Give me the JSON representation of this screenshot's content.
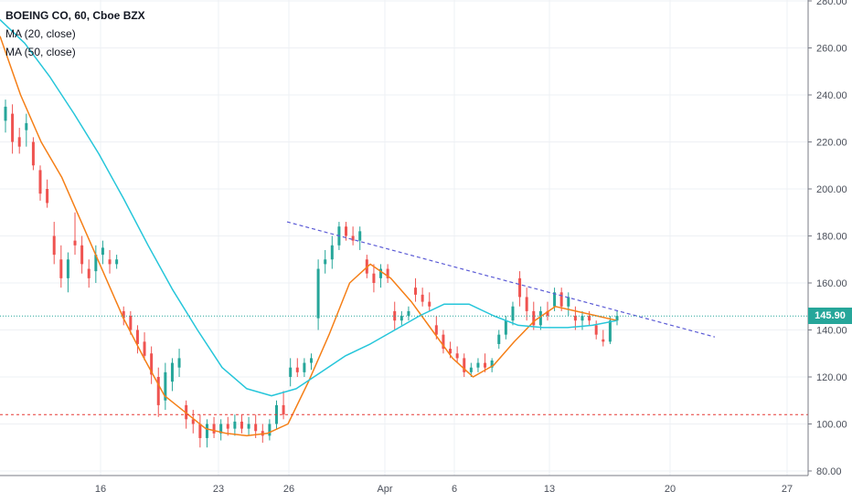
{
  "legend": {
    "symbol": "BOEING CO, 60, Cboe BZX",
    "ma20": "MA (20, close)",
    "ma50": "MA (50, close)"
  },
  "last_price_label": "145.90",
  "colors": {
    "up": "#26a69a",
    "down": "#ef5350",
    "ma20": "#f57f17",
    "ma50": "#26c6da",
    "trendline": "#5b5bd6",
    "support": "#e53935",
    "grid": "#eef0f4"
  },
  "chart_data": {
    "type": "candlestick",
    "title": "BOEING CO, 60, Cboe BZX",
    "x_ticks": [
      "16",
      "23",
      "26",
      "Apr",
      "6",
      "13",
      "20",
      "27"
    ],
    "ylim": [
      80,
      280
    ],
    "y_ticks": [
      80,
      100,
      120,
      140,
      160,
      180,
      200,
      220,
      240,
      260,
      280
    ],
    "last_price": 145.9,
    "support_line": 104,
    "trendline": {
      "from": 186,
      "to": 137
    },
    "series": [
      {
        "name": "MA (20, close)",
        "values": [
          265,
          240,
          220,
          205,
          185,
          165,
          145,
          128,
          112,
          105,
          98,
          96,
          95,
          96,
          100,
          118,
          138,
          160,
          168,
          162,
          152,
          140,
          128,
          120,
          125,
          135,
          144,
          150,
          148,
          146,
          144
        ]
      },
      {
        "name": "MA (50, close)",
        "values": [
          272,
          262,
          248,
          232,
          215,
          196,
          176,
          157,
          140,
          124,
          115,
          112,
          115,
          122,
          129,
          134,
          140,
          146,
          151,
          151,
          146,
          142,
          141,
          141,
          142,
          144
        ]
      }
    ],
    "candles": [
      {
        "o": 229,
        "h": 238,
        "l": 224,
        "c": 235
      },
      {
        "o": 232,
        "h": 236,
        "l": 215,
        "c": 220
      },
      {
        "o": 222,
        "h": 226,
        "l": 215,
        "c": 218
      },
      {
        "o": 225,
        "h": 232,
        "l": 218,
        "c": 228
      },
      {
        "o": 220,
        "h": 222,
        "l": 208,
        "c": 210
      },
      {
        "o": 208,
        "h": 210,
        "l": 195,
        "c": 198
      },
      {
        "o": 200,
        "h": 204,
        "l": 192,
        "c": 194
      },
      {
        "o": 180,
        "h": 186,
        "l": 168,
        "c": 172
      },
      {
        "o": 170,
        "h": 176,
        "l": 158,
        "c": 162
      },
      {
        "o": 162,
        "h": 173,
        "l": 156,
        "c": 170
      },
      {
        "o": 178,
        "h": 190,
        "l": 172,
        "c": 176
      },
      {
        "o": 176,
        "h": 180,
        "l": 164,
        "c": 168
      },
      {
        "o": 166,
        "h": 170,
        "l": 158,
        "c": 162
      },
      {
        "o": 165,
        "h": 176,
        "l": 160,
        "c": 172
      },
      {
        "o": 172,
        "h": 178,
        "l": 168,
        "c": 175
      },
      {
        "o": 170,
        "h": 174,
        "l": 164,
        "c": 168
      },
      {
        "o": 168,
        "h": 172,
        "l": 166,
        "c": 170
      },
      {
        "o": 148,
        "h": 150,
        "l": 142,
        "c": 145
      },
      {
        "o": 146,
        "h": 148,
        "l": 138,
        "c": 140
      },
      {
        "o": 140,
        "h": 142,
        "l": 130,
        "c": 134
      },
      {
        "o": 135,
        "h": 139,
        "l": 127,
        "c": 129
      },
      {
        "o": 130,
        "h": 133,
        "l": 117,
        "c": 121
      },
      {
        "o": 120,
        "h": 124,
        "l": 103,
        "c": 108
      },
      {
        "o": 110,
        "h": 126,
        "l": 106,
        "c": 122
      },
      {
        "o": 118,
        "h": 128,
        "l": 114,
        "c": 126
      },
      {
        "o": 124,
        "h": 132,
        "l": 120,
        "c": 128
      },
      {
        "o": 108,
        "h": 110,
        "l": 98,
        "c": 102
      },
      {
        "o": 102,
        "h": 106,
        "l": 96,
        "c": 100
      },
      {
        "o": 100,
        "h": 104,
        "l": 90,
        "c": 94
      },
      {
        "o": 94,
        "h": 102,
        "l": 90,
        "c": 100
      },
      {
        "o": 100,
        "h": 103,
        "l": 94,
        "c": 96
      },
      {
        "o": 96,
        "h": 102,
        "l": 93,
        "c": 100
      },
      {
        "o": 100,
        "h": 103,
        "l": 95,
        "c": 98
      },
      {
        "o": 98,
        "h": 104,
        "l": 95,
        "c": 101
      },
      {
        "o": 101,
        "h": 104,
        "l": 96,
        "c": 98
      },
      {
        "o": 98,
        "h": 103,
        "l": 95,
        "c": 100
      },
      {
        "o": 100,
        "h": 104,
        "l": 94,
        "c": 97
      },
      {
        "o": 97,
        "h": 100,
        "l": 92,
        "c": 95
      },
      {
        "o": 95,
        "h": 102,
        "l": 93,
        "c": 100
      },
      {
        "o": 100,
        "h": 110,
        "l": 98,
        "c": 108
      },
      {
        "o": 108,
        "h": 114,
        "l": 102,
        "c": 104
      },
      {
        "o": 120,
        "h": 128,
        "l": 116,
        "c": 124
      },
      {
        "o": 124,
        "h": 128,
        "l": 120,
        "c": 122
      },
      {
        "o": 122,
        "h": 128,
        "l": 120,
        "c": 126
      },
      {
        "o": 126,
        "h": 130,
        "l": 123,
        "c": 128
      },
      {
        "o": 145,
        "h": 170,
        "l": 140,
        "c": 166
      },
      {
        "o": 168,
        "h": 174,
        "l": 164,
        "c": 170
      },
      {
        "o": 170,
        "h": 180,
        "l": 166,
        "c": 176
      },
      {
        "o": 176,
        "h": 186,
        "l": 174,
        "c": 184
      },
      {
        "o": 184,
        "h": 186,
        "l": 178,
        "c": 180
      },
      {
        "o": 180,
        "h": 184,
        "l": 176,
        "c": 178
      },
      {
        "o": 178,
        "h": 184,
        "l": 174,
        "c": 182
      },
      {
        "o": 170,
        "h": 172,
        "l": 162,
        "c": 164
      },
      {
        "o": 164,
        "h": 168,
        "l": 156,
        "c": 160
      },
      {
        "o": 162,
        "h": 168,
        "l": 158,
        "c": 166
      },
      {
        "o": 166,
        "h": 168,
        "l": 160,
        "c": 162
      },
      {
        "o": 148,
        "h": 152,
        "l": 140,
        "c": 144
      },
      {
        "o": 144,
        "h": 148,
        "l": 142,
        "c": 146
      },
      {
        "o": 146,
        "h": 150,
        "l": 144,
        "c": 148
      },
      {
        "o": 158,
        "h": 162,
        "l": 152,
        "c": 155
      },
      {
        "o": 155,
        "h": 158,
        "l": 150,
        "c": 152
      },
      {
        "o": 152,
        "h": 156,
        "l": 148,
        "c": 150
      },
      {
        "o": 142,
        "h": 146,
        "l": 136,
        "c": 138
      },
      {
        "o": 138,
        "h": 140,
        "l": 130,
        "c": 132
      },
      {
        "o": 132,
        "h": 135,
        "l": 128,
        "c": 130
      },
      {
        "o": 130,
        "h": 133,
        "l": 126,
        "c": 128
      },
      {
        "o": 128,
        "h": 130,
        "l": 120,
        "c": 122
      },
      {
        "o": 122,
        "h": 126,
        "l": 120,
        "c": 124
      },
      {
        "o": 124,
        "h": 128,
        "l": 122,
        "c": 126
      },
      {
        "o": 126,
        "h": 130,
        "l": 122,
        "c": 124
      },
      {
        "o": 124,
        "h": 128,
        "l": 122,
        "c": 127
      },
      {
        "o": 134,
        "h": 140,
        "l": 132,
        "c": 138
      },
      {
        "o": 138,
        "h": 146,
        "l": 136,
        "c": 144
      },
      {
        "o": 144,
        "h": 152,
        "l": 142,
        "c": 150
      },
      {
        "o": 162,
        "h": 165,
        "l": 150,
        "c": 154
      },
      {
        "o": 154,
        "h": 158,
        "l": 144,
        "c": 148
      },
      {
        "o": 148,
        "h": 152,
        "l": 140,
        "c": 142
      },
      {
        "o": 142,
        "h": 150,
        "l": 140,
        "c": 148
      },
      {
        "o": 148,
        "h": 152,
        "l": 144,
        "c": 146
      },
      {
        "o": 150,
        "h": 158,
        "l": 148,
        "c": 156
      },
      {
        "o": 156,
        "h": 158,
        "l": 148,
        "c": 150
      },
      {
        "o": 150,
        "h": 156,
        "l": 146,
        "c": 154
      },
      {
        "o": 146,
        "h": 150,
        "l": 140,
        "c": 144
      },
      {
        "o": 144,
        "h": 148,
        "l": 140,
        "c": 146
      },
      {
        "o": 146,
        "h": 148,
        "l": 142,
        "c": 144
      },
      {
        "o": 142,
        "h": 144,
        "l": 136,
        "c": 138
      },
      {
        "o": 136,
        "h": 140,
        "l": 133,
        "c": 135
      },
      {
        "o": 135,
        "h": 146,
        "l": 134,
        "c": 144
      },
      {
        "o": 144,
        "h": 148,
        "l": 142,
        "c": 146
      }
    ]
  }
}
